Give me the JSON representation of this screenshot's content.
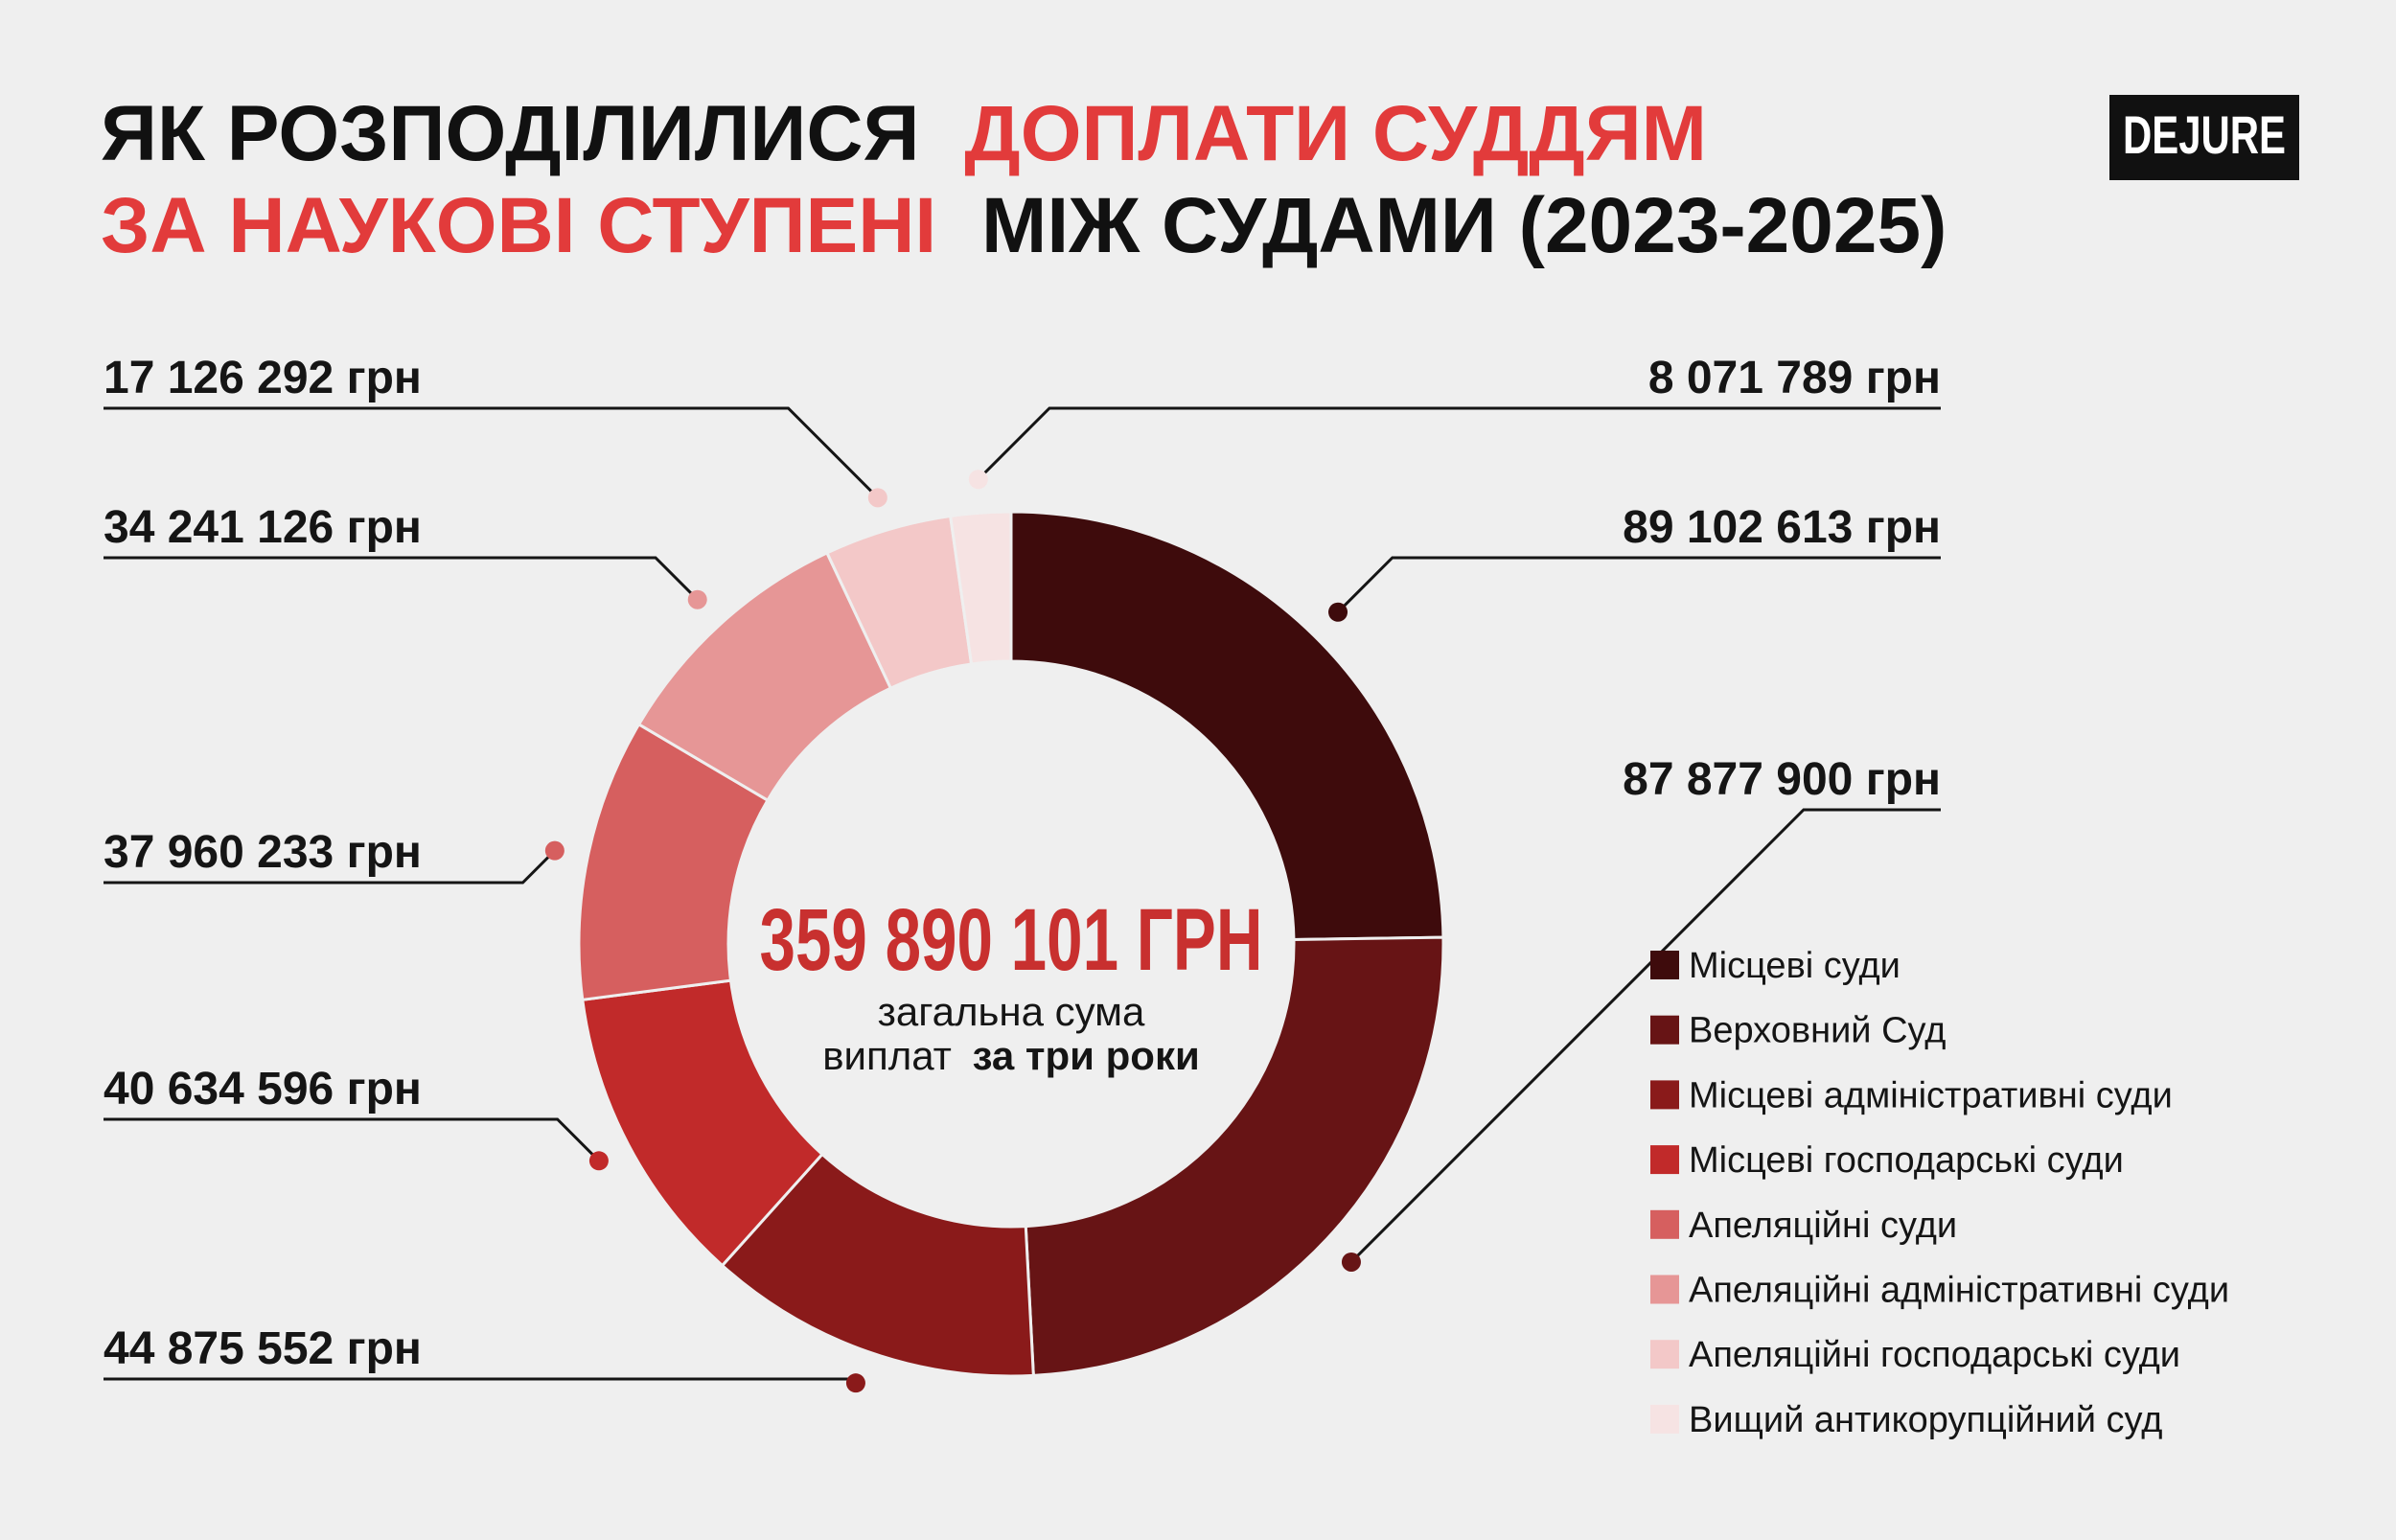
{
  "chart_data": {
    "type": "donut",
    "title_parts": [
      {
        "text": "ЯК РОЗПОДІЛИЛИСЯ",
        "color": "#111111"
      },
      {
        "text": "ДОПЛАТИ СУДДЯМ",
        "color": "#e23b3b"
      },
      {
        "text": "ЗА НАУКОВІ СТУПЕНІ",
        "color": "#e23b3b"
      },
      {
        "text": "МІЖ СУДАМИ (2023-2025)",
        "color": "#111111"
      }
    ],
    "logo": "DEJURE",
    "categories": [
      "Місцеві суди",
      "Верховний Суд",
      "Місцеві адміністративні суди",
      "Місцеві господарські суди",
      "Апеляційні суди",
      "Апеляційні адміністративні суди",
      "Апеляційні господарські суди",
      "Вищий антикорупційний суд"
    ],
    "values": [
      89102613,
      87877900,
      44875552,
      40634596,
      37960233,
      34241126,
      17126292,
      8071789
    ],
    "value_labels": [
      "89 102 613 грн",
      "87 877 900 грн",
      "44 875 552 грн",
      "40 634 596 грн",
      "37 960 233 грн",
      "34 241 126 грн",
      "17 126 292 грн",
      "8 071 789 грн"
    ],
    "colors": [
      "#3e0b0c",
      "#671415",
      "#8a1a1a",
      "#c12a2a",
      "#d65f5f",
      "#e69696",
      "#f3c8c8",
      "#f6e3e3"
    ],
    "total": {
      "value": 359890101,
      "label": "359 890 101 ГРН"
    },
    "total_color": "#c8302f",
    "center_text": [
      "загальна сума",
      "виплат",
      "за три роки"
    ]
  }
}
